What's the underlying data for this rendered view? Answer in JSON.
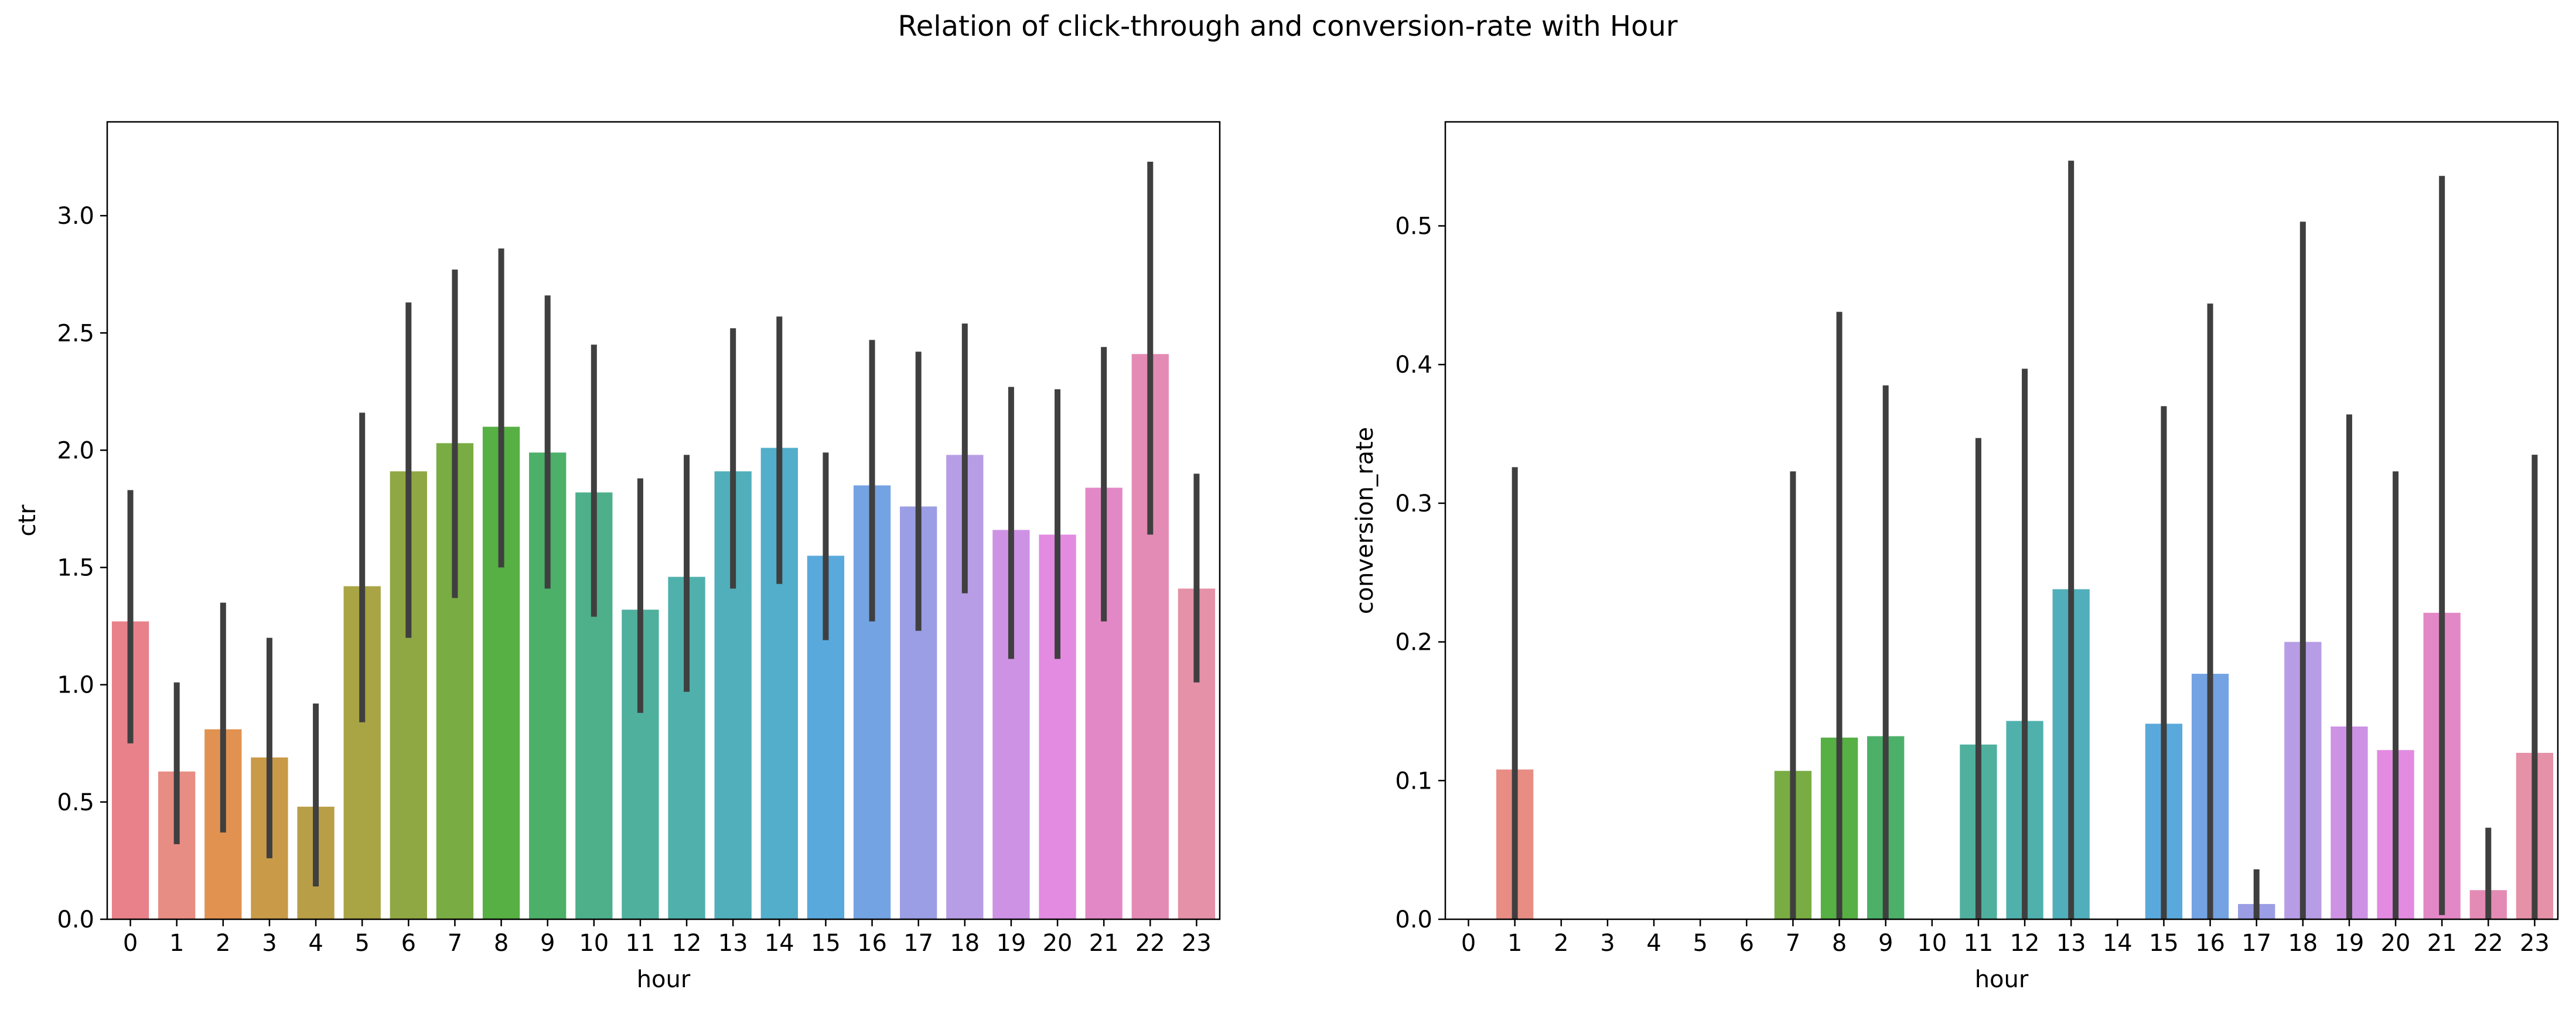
{
  "figure": {
    "suptitle": "Relation of click-through and conversion-rate with Hour"
  },
  "palette": [
    "#E8818A",
    "#E88D84",
    "#E29250",
    "#C99A48",
    "#B89E47",
    "#A9A444",
    "#8FA844",
    "#79AC43",
    "#56B043",
    "#4CB068",
    "#4EB08B",
    "#4FB09E",
    "#50B0AC",
    "#51AFBB",
    "#52AECA",
    "#5AA9DC",
    "#74A3E3",
    "#9B9EE4",
    "#B79DE5",
    "#CD92E4",
    "#E28BE1",
    "#E388C6",
    "#E48BB5",
    "#E591A7"
  ],
  "chart_data": [
    {
      "type": "bar",
      "title": "",
      "xlabel": "hour",
      "ylabel": "ctr",
      "categories": [
        "0",
        "1",
        "2",
        "3",
        "4",
        "5",
        "6",
        "7",
        "8",
        "9",
        "10",
        "11",
        "12",
        "13",
        "14",
        "15",
        "16",
        "17",
        "18",
        "19",
        "20",
        "21",
        "22",
        "23"
      ],
      "values": [
        1.27,
        0.63,
        0.81,
        0.69,
        0.48,
        1.42,
        1.91,
        2.03,
        2.1,
        1.99,
        1.82,
        1.32,
        1.46,
        1.91,
        2.01,
        1.55,
        1.85,
        1.76,
        1.98,
        1.66,
        1.64,
        1.84,
        2.41,
        1.41
      ],
      "ci_low": [
        0.75,
        0.32,
        0.37,
        0.26,
        0.14,
        0.84,
        1.2,
        1.37,
        1.5,
        1.41,
        1.29,
        0.88,
        0.97,
        1.41,
        1.43,
        1.19,
        1.27,
        1.23,
        1.39,
        1.11,
        1.11,
        1.27,
        1.64,
        1.01
      ],
      "ci_high": [
        1.83,
        1.01,
        1.35,
        1.2,
        0.92,
        2.16,
        2.63,
        2.77,
        2.86,
        2.66,
        2.45,
        1.88,
        1.98,
        2.52,
        2.57,
        1.99,
        2.47,
        2.42,
        2.54,
        2.27,
        2.26,
        2.44,
        3.23,
        1.9
      ],
      "ylim": [
        0,
        3.4
      ],
      "yticks": [
        "0.0",
        "0.5",
        "1.0",
        "1.5",
        "2.0",
        "2.5",
        "3.0"
      ],
      "grid": false
    },
    {
      "type": "bar",
      "title": "",
      "xlabel": "hour",
      "ylabel": "conversion_rate",
      "categories": [
        "0",
        "1",
        "2",
        "3",
        "4",
        "5",
        "6",
        "7",
        "8",
        "9",
        "10",
        "11",
        "12",
        "13",
        "14",
        "15",
        "16",
        "17",
        "18",
        "19",
        "20",
        "21",
        "22",
        "23"
      ],
      "values": [
        0,
        0.108,
        0,
        0,
        0,
        0,
        0,
        0.107,
        0.131,
        0.132,
        0,
        0.126,
        0.143,
        0.238,
        0,
        0.141,
        0.177,
        0.011,
        0.2,
        0.139,
        0.122,
        0.221,
        0.021,
        0.12
      ],
      "ci_low": [
        0,
        0,
        0,
        0,
        0,
        0,
        0,
        0,
        0,
        0,
        0,
        0,
        0,
        0,
        0,
        0,
        0,
        0,
        0,
        0,
        0,
        0.003,
        0,
        0
      ],
      "ci_high": [
        0,
        0.326,
        0,
        0,
        0,
        0,
        0,
        0.323,
        0.438,
        0.385,
        0,
        0.347,
        0.397,
        0.547,
        0,
        0.37,
        0.444,
        0.036,
        0.503,
        0.364,
        0.323,
        0.536,
        0.066,
        0.335
      ],
      "ylim": [
        0,
        0.575
      ],
      "yticks": [
        "0.0",
        "0.1",
        "0.2",
        "0.3",
        "0.4",
        "0.5"
      ],
      "grid": false
    }
  ]
}
